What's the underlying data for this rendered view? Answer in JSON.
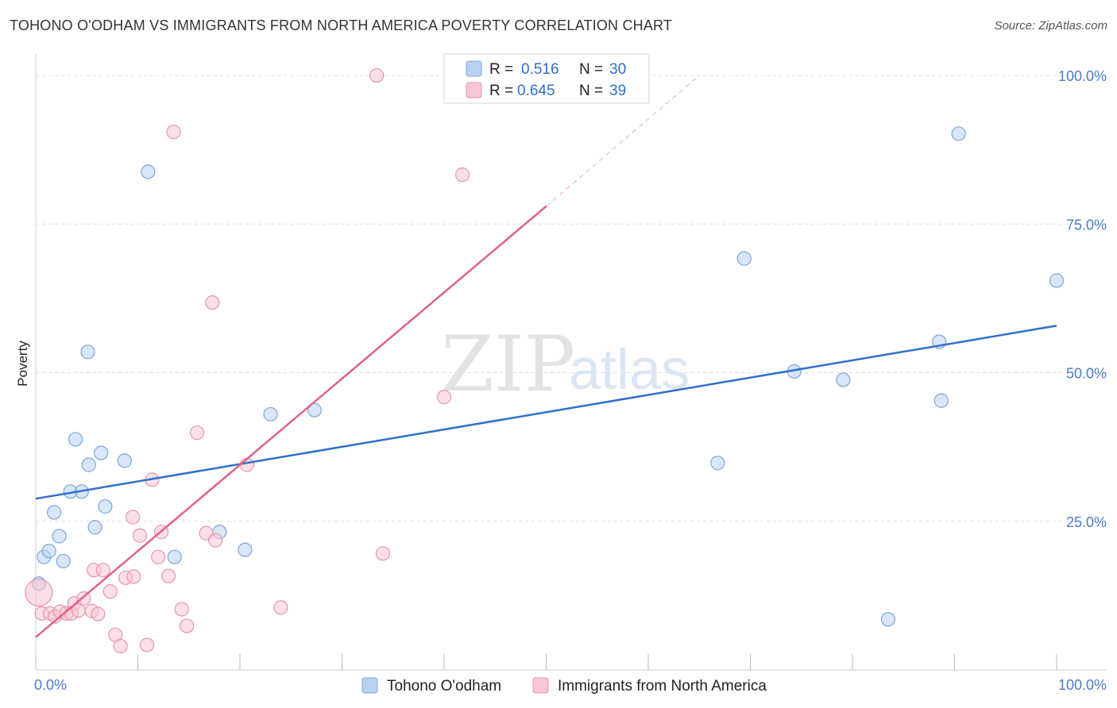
{
  "header": {
    "title": "TOHONO O'ODHAM VS IMMIGRANTS FROM NORTH AMERICA POVERTY CORRELATION CHART",
    "source": "Source: ZipAtlas.com"
  },
  "watermark": {
    "zip": "ZIP",
    "atlas": "atlas"
  },
  "legend_stats": {
    "r_label": "R =",
    "n_label": "N =",
    "series": [
      {
        "r": "0.516",
        "n": "30"
      },
      {
        "r": "0.645",
        "n": "39"
      }
    ]
  },
  "colors": {
    "blue_fill": "#b8d1f3",
    "blue_stroke": "#7fa6da",
    "blue_line": "#2f6fcc",
    "pink_fill": "#f8c6d4",
    "pink_stroke": "#e895ae",
    "pink_line": "#e0628a",
    "grid": "#dddddd",
    "axis_text": "#4a7cc9"
  },
  "chart_data": {
    "type": "scatter",
    "title": "TOHONO O'ODHAM VS IMMIGRANTS FROM NORTH AMERICA POVERTY CORRELATION CHART",
    "xlabel": "",
    "ylabel": "Poverty",
    "xlim": [
      0,
      100
    ],
    "ylim": [
      0,
      100
    ],
    "x_tick_labels": [
      "0.0%",
      "100.0%"
    ],
    "y_ticks": [
      25,
      50,
      75,
      100
    ],
    "y_tick_labels": [
      "25.0%",
      "50.0%",
      "75.0%",
      "100.0%"
    ],
    "grid": true,
    "series": [
      {
        "name": "Tohono O'odham",
        "color": "#b8d1f3",
        "points": [
          [
            0.3,
            14.5
          ],
          [
            0.8,
            19
          ],
          [
            1.3,
            20
          ],
          [
            1.8,
            26.5
          ],
          [
            2.3,
            22.5
          ],
          [
            2.7,
            18.3
          ],
          [
            3.4,
            30
          ],
          [
            3.9,
            38.8
          ],
          [
            4.5,
            30
          ],
          [
            5.2,
            34.5
          ],
          [
            5.1,
            53.5
          ],
          [
            5.8,
            24
          ],
          [
            6.4,
            36.5
          ],
          [
            6.8,
            27.5
          ],
          [
            8.7,
            35.2
          ],
          [
            11,
            83.8
          ],
          [
            13.6,
            19
          ],
          [
            18,
            23.2
          ],
          [
            20.5,
            20.2
          ],
          [
            23,
            43
          ],
          [
            27.3,
            43.7
          ],
          [
            66.8,
            34.8
          ],
          [
            69.4,
            69.2
          ],
          [
            74.3,
            50.2
          ],
          [
            79.1,
            48.8
          ],
          [
            83.5,
            8.5
          ],
          [
            88.5,
            55.2
          ],
          [
            88.7,
            45.3
          ],
          [
            90.4,
            90.2
          ],
          [
            100,
            65.5
          ]
        ],
        "trend": {
          "x": [
            0,
            100
          ],
          "y": [
            28.8,
            57.9
          ]
        }
      },
      {
        "name": "Immigrants from North America",
        "color": "#f8c6d4",
        "points": [
          [
            0.3,
            13
          ],
          [
            0.6,
            9.5
          ],
          [
            1.4,
            9.5
          ],
          [
            1.9,
            9
          ],
          [
            2.4,
            9.8
          ],
          [
            3,
            9.5
          ],
          [
            3.5,
            9.5
          ],
          [
            3.8,
            11.2
          ],
          [
            4.2,
            10
          ],
          [
            4.7,
            12
          ],
          [
            5.5,
            9.9
          ],
          [
            5.7,
            16.8
          ],
          [
            6.1,
            9.4
          ],
          [
            6.6,
            16.8
          ],
          [
            7.3,
            13.2
          ],
          [
            7.8,
            5.9
          ],
          [
            8.3,
            4
          ],
          [
            8.8,
            15.5
          ],
          [
            9.6,
            15.7
          ],
          [
            9.5,
            25.7
          ],
          [
            10.2,
            22.6
          ],
          [
            10.9,
            4.2
          ],
          [
            11.4,
            32
          ],
          [
            12,
            19
          ],
          [
            12.3,
            23.2
          ],
          [
            13,
            15.8
          ],
          [
            13.5,
            90.5
          ],
          [
            14.3,
            10.2
          ],
          [
            14.8,
            7.4
          ],
          [
            15.8,
            39.9
          ],
          [
            16.7,
            23
          ],
          [
            17.3,
            61.8
          ],
          [
            17.6,
            21.8
          ],
          [
            20.7,
            34.5
          ],
          [
            24,
            10.5
          ],
          [
            33.4,
            100
          ],
          [
            34,
            19.6
          ],
          [
            40,
            45.9
          ],
          [
            41.8,
            83.3
          ]
        ],
        "trend": {
          "x": [
            0,
            50
          ],
          "y": [
            5.5,
            78
          ]
        },
        "trend_extension": {
          "x": [
            50,
            65
          ],
          "y": [
            78,
            100
          ]
        }
      }
    ],
    "legend": [
      "Tohono O'odham",
      "Immigrants from North America"
    ],
    "legend_position": "bottom"
  }
}
